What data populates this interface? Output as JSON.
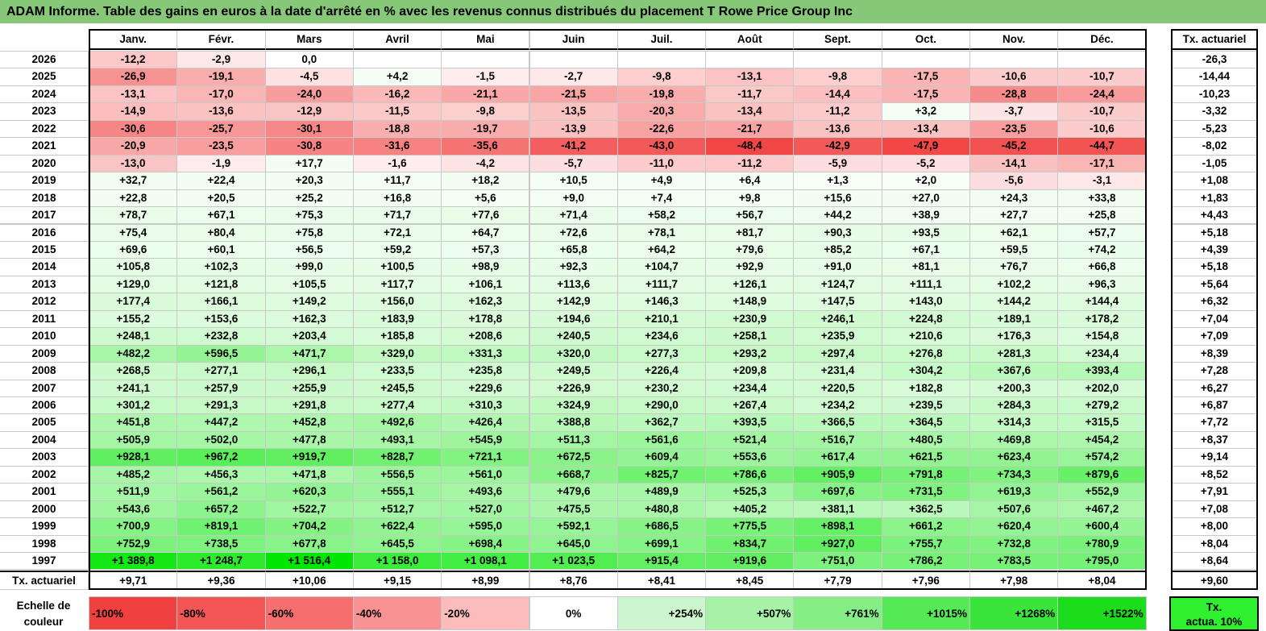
{
  "title": "ADAM Informe. Table des gains en euros à la date d'arrêté en % avec les revenus connus distribués du placement T Rowe Price Group Inc",
  "chart_data": {
    "type": "table",
    "months": [
      "Janv.",
      "Févr.",
      "Mars",
      "Avril",
      "Mai",
      "Juin",
      "Juil.",
      "Août",
      "Sept.",
      "Oct.",
      "Nov.",
      "Déc."
    ],
    "annual_header": "Tx. actuariel",
    "rows": [
      {
        "year": "2026",
        "values": [
          "-12,2",
          "-2,9",
          "0,0",
          "",
          "",
          "",
          "",
          "",
          "",
          "",
          "",
          ""
        ],
        "annual": "-26,3"
      },
      {
        "year": "2025",
        "values": [
          "-26,9",
          "-19,1",
          "-4,5",
          "+4,2",
          "-1,5",
          "-2,7",
          "-9,8",
          "-13,1",
          "-9,8",
          "-17,5",
          "-10,6",
          "-10,7"
        ],
        "annual": "-14,44"
      },
      {
        "year": "2024",
        "values": [
          "-13,1",
          "-17,0",
          "-24,0",
          "-16,2",
          "-21,1",
          "-21,5",
          "-19,8",
          "-11,7",
          "-14,4",
          "-17,5",
          "-28,8",
          "-24,4"
        ],
        "annual": "-10,23"
      },
      {
        "year": "2023",
        "values": [
          "-14,9",
          "-13,6",
          "-12,9",
          "-11,5",
          "-9,8",
          "-13,5",
          "-20,3",
          "-13,4",
          "-11,2",
          "+3,2",
          "-3,7",
          "-10,7"
        ],
        "annual": "-3,32"
      },
      {
        "year": "2022",
        "values": [
          "-30,6",
          "-25,7",
          "-30,1",
          "-18,8",
          "-19,7",
          "-13,9",
          "-22,6",
          "-21,7",
          "-13,6",
          "-13,4",
          "-23,5",
          "-10,6"
        ],
        "annual": "-5,23"
      },
      {
        "year": "2021",
        "values": [
          "-20,9",
          "-23,5",
          "-30,8",
          "-31,6",
          "-35,6",
          "-41,2",
          "-43,0",
          "-48,4",
          "-42,9",
          "-47,9",
          "-45,2",
          "-44,7"
        ],
        "annual": "-8,02"
      },
      {
        "year": "2020",
        "values": [
          "-13,0",
          "-1,9",
          "+17,7",
          "-1,6",
          "-4,2",
          "-5,7",
          "-11,0",
          "-11,2",
          "-5,9",
          "-5,2",
          "-14,1",
          "-17,1"
        ],
        "annual": "-1,05"
      },
      {
        "year": "2019",
        "values": [
          "+32,7",
          "+22,4",
          "+20,3",
          "+11,7",
          "+18,2",
          "+10,5",
          "+4,9",
          "+6,4",
          "+1,3",
          "+2,0",
          "-5,6",
          "-3,1"
        ],
        "annual": "+1,08"
      },
      {
        "year": "2018",
        "values": [
          "+22,8",
          "+20,5",
          "+25,2",
          "+16,8",
          "+5,6",
          "+9,0",
          "+7,4",
          "+9,8",
          "+15,6",
          "+27,0",
          "+24,3",
          "+33,8"
        ],
        "annual": "+1,83"
      },
      {
        "year": "2017",
        "values": [
          "+78,7",
          "+67,1",
          "+75,3",
          "+71,7",
          "+77,6",
          "+71,4",
          "+58,2",
          "+56,7",
          "+44,2",
          "+38,9",
          "+27,7",
          "+25,8"
        ],
        "annual": "+4,43"
      },
      {
        "year": "2016",
        "values": [
          "+75,4",
          "+80,4",
          "+75,8",
          "+72,1",
          "+64,7",
          "+72,6",
          "+78,1",
          "+81,7",
          "+90,3",
          "+93,5",
          "+62,1",
          "+57,7"
        ],
        "annual": "+5,18"
      },
      {
        "year": "2015",
        "values": [
          "+69,6",
          "+60,1",
          "+56,5",
          "+59,2",
          "+57,3",
          "+65,8",
          "+64,2",
          "+79,6",
          "+85,2",
          "+67,1",
          "+59,5",
          "+74,2"
        ],
        "annual": "+4,39"
      },
      {
        "year": "2014",
        "values": [
          "+105,8",
          "+102,3",
          "+99,0",
          "+100,5",
          "+98,9",
          "+92,3",
          "+104,7",
          "+92,9",
          "+91,0",
          "+81,1",
          "+76,7",
          "+66,8"
        ],
        "annual": "+5,18"
      },
      {
        "year": "2013",
        "values": [
          "+129,0",
          "+121,8",
          "+105,5",
          "+117,7",
          "+106,1",
          "+113,6",
          "+111,7",
          "+126,1",
          "+124,7",
          "+111,1",
          "+102,2",
          "+96,3"
        ],
        "annual": "+5,64"
      },
      {
        "year": "2012",
        "values": [
          "+177,4",
          "+166,1",
          "+149,2",
          "+156,0",
          "+162,3",
          "+142,9",
          "+146,3",
          "+148,9",
          "+147,5",
          "+143,0",
          "+144,2",
          "+144,4"
        ],
        "annual": "+6,32"
      },
      {
        "year": "2011",
        "values": [
          "+155,2",
          "+153,6",
          "+162,3",
          "+183,9",
          "+178,8",
          "+194,6",
          "+210,1",
          "+230,9",
          "+246,1",
          "+224,8",
          "+189,1",
          "+178,2"
        ],
        "annual": "+7,04"
      },
      {
        "year": "2010",
        "values": [
          "+248,1",
          "+232,8",
          "+203,4",
          "+185,8",
          "+208,6",
          "+240,5",
          "+234,6",
          "+258,1",
          "+235,9",
          "+210,6",
          "+176,3",
          "+154,8"
        ],
        "annual": "+7,09"
      },
      {
        "year": "2009",
        "values": [
          "+482,2",
          "+596,5",
          "+471,7",
          "+329,0",
          "+331,3",
          "+320,0",
          "+277,3",
          "+293,2",
          "+297,4",
          "+276,8",
          "+281,3",
          "+234,4"
        ],
        "annual": "+8,39"
      },
      {
        "year": "2008",
        "values": [
          "+268,5",
          "+277,1",
          "+296,1",
          "+233,5",
          "+235,8",
          "+249,5",
          "+226,4",
          "+209,8",
          "+231,4",
          "+304,2",
          "+367,6",
          "+393,4"
        ],
        "annual": "+7,28"
      },
      {
        "year": "2007",
        "values": [
          "+241,1",
          "+257,9",
          "+255,9",
          "+245,5",
          "+229,6",
          "+226,9",
          "+230,2",
          "+234,4",
          "+220,5",
          "+182,8",
          "+200,3",
          "+202,0"
        ],
        "annual": "+6,27"
      },
      {
        "year": "2006",
        "values": [
          "+301,2",
          "+291,3",
          "+291,8",
          "+277,4",
          "+310,3",
          "+324,9",
          "+290,0",
          "+267,4",
          "+234,2",
          "+239,5",
          "+284,3",
          "+279,2"
        ],
        "annual": "+6,87"
      },
      {
        "year": "2005",
        "values": [
          "+451,8",
          "+447,2",
          "+452,8",
          "+492,6",
          "+426,4",
          "+388,8",
          "+362,7",
          "+393,5",
          "+366,5",
          "+364,5",
          "+314,3",
          "+315,5"
        ],
        "annual": "+7,72"
      },
      {
        "year": "2004",
        "values": [
          "+505,9",
          "+502,0",
          "+477,8",
          "+493,1",
          "+545,9",
          "+511,3",
          "+561,6",
          "+521,4",
          "+516,7",
          "+480,5",
          "+469,8",
          "+454,2"
        ],
        "annual": "+8,37"
      },
      {
        "year": "2003",
        "values": [
          "+928,1",
          "+967,2",
          "+919,7",
          "+828,7",
          "+721,1",
          "+672,5",
          "+609,4",
          "+553,6",
          "+617,4",
          "+621,5",
          "+623,4",
          "+574,2"
        ],
        "annual": "+9,14"
      },
      {
        "year": "2002",
        "values": [
          "+485,2",
          "+456,3",
          "+471,8",
          "+556,5",
          "+561,0",
          "+668,7",
          "+825,7",
          "+786,6",
          "+905,9",
          "+791,8",
          "+734,3",
          "+879,6"
        ],
        "annual": "+8,52"
      },
      {
        "year": "2001",
        "values": [
          "+511,9",
          "+561,2",
          "+620,3",
          "+555,1",
          "+493,6",
          "+479,6",
          "+489,9",
          "+525,3",
          "+697,6",
          "+731,5",
          "+619,3",
          "+552,9"
        ],
        "annual": "+7,91"
      },
      {
        "year": "2000",
        "values": [
          "+543,6",
          "+657,2",
          "+522,7",
          "+512,7",
          "+527,0",
          "+475,5",
          "+480,8",
          "+405,2",
          "+381,1",
          "+362,5",
          "+507,6",
          "+467,2"
        ],
        "annual": "+7,08"
      },
      {
        "year": "1999",
        "values": [
          "+700,9",
          "+819,1",
          "+704,2",
          "+622,4",
          "+595,0",
          "+592,1",
          "+686,5",
          "+775,5",
          "+898,1",
          "+661,2",
          "+620,4",
          "+600,4"
        ],
        "annual": "+8,00"
      },
      {
        "year": "1998",
        "values": [
          "+752,9",
          "+738,5",
          "+677,8",
          "+645,5",
          "+698,4",
          "+645,0",
          "+699,1",
          "+834,7",
          "+927,0",
          "+755,7",
          "+732,8",
          "+780,9"
        ],
        "annual": "+8,04"
      },
      {
        "year": "1997",
        "values": [
          "+1 389,8",
          "+1 248,7",
          "+1 516,4",
          "+1 158,0",
          "+1 098,1",
          "+1 023,5",
          "+915,4",
          "+919,6",
          "+751,0",
          "+786,2",
          "+783,5",
          "+795,0"
        ],
        "annual": "+8,64"
      }
    ],
    "footer": {
      "label": "Tx. actuariel",
      "values": [
        "+9,71",
        "+9,36",
        "+10,06",
        "+9,15",
        "+8,99",
        "+8,76",
        "+8,41",
        "+8,45",
        "+7,79",
        "+7,96",
        "+7,98",
        "+8,04"
      ],
      "annual": "+9,60"
    },
    "scale": {
      "label_line1": "Echelle de",
      "label_line2": "couleur",
      "entries": [
        {
          "text": "-100%",
          "color": "#f04040"
        },
        {
          "text": "-80%",
          "color": "#f45656"
        },
        {
          "text": "-60%",
          "color": "#f66f6f"
        },
        {
          "text": "-40%",
          "color": "#f99292"
        },
        {
          "text": "-20%",
          "color": "#fcbcbc"
        },
        {
          "text": "0%",
          "color": "#ffffff"
        },
        {
          "text": "+254%",
          "color": "#ccf7cc"
        },
        {
          "text": "+507%",
          "color": "#a6f2a6"
        },
        {
          "text": "+761%",
          "color": "#85ee85"
        },
        {
          "text": "+1015%",
          "color": "#55e955"
        },
        {
          "text": "+1268%",
          "color": "#3ae43a"
        },
        {
          "text": "+1522%",
          "color": "#1cdd1c"
        }
      ],
      "annual_line1": "Tx.",
      "annual_line2": "actua. 10%",
      "annual_color": "#2ef02e"
    }
  }
}
